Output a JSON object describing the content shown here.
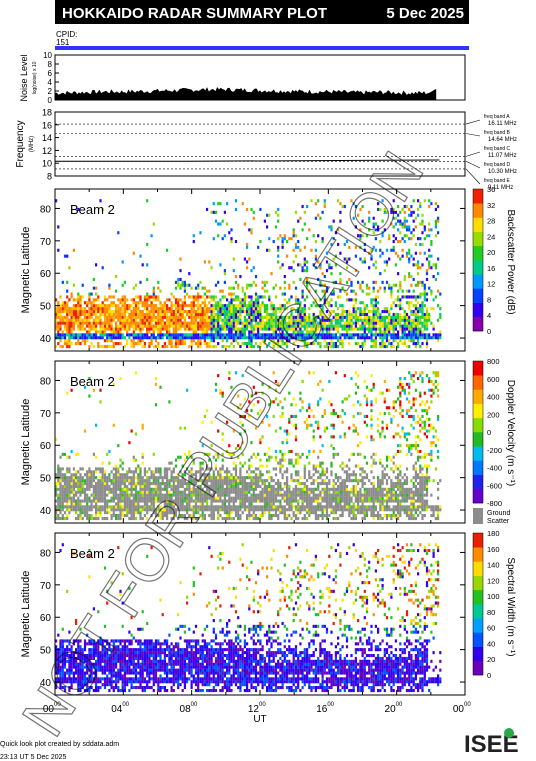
{
  "header": {
    "title": "HOKKAIDO RADAR SUMMARY PLOT",
    "date": "5 Dec 2025"
  },
  "cpid": {
    "label": "CPID:",
    "value": "151"
  },
  "colors": {
    "header_bg": "#000000",
    "cpid_bar": "#3333ff",
    "ground_scatter": "#8c8c8c",
    "watermark": "#000000"
  },
  "watermark": "NOT FOR PUBLICATION",
  "footer": {
    "credit": "Quick look plot created by sddata.adm",
    "timestamp": "23:13 UT  5 Dec 2025",
    "logo": "ISEE"
  },
  "chart_data": [
    {
      "type": "area",
      "id": "noise",
      "ylabel": "Noise Level",
      "ylabel_sub": "log(noise) x 10",
      "ylim": [
        0,
        10
      ],
      "yticks": [
        "0",
        "2",
        "4",
        "6",
        "8",
        "10"
      ],
      "x": [
        0,
        1,
        2,
        3,
        4,
        5,
        6,
        7,
        8,
        9,
        10,
        11,
        12,
        13,
        14,
        15,
        16,
        17,
        18,
        19,
        20,
        21,
        22
      ],
      "values": [
        1.5,
        1.6,
        1.7,
        1.8,
        1.8,
        1.9,
        2.0,
        2.1,
        2.2,
        2.3,
        2.3,
        2.2,
        2.1,
        2.0,
        1.9,
        1.8,
        1.8,
        1.7,
        1.6,
        1.7,
        1.6,
        1.5,
        1.6
      ]
    },
    {
      "type": "line",
      "id": "frequency",
      "ylabel": "Frequency",
      "ylabel_sub": "(MHz)",
      "ylim": [
        8,
        18
      ],
      "yticks": [
        "8",
        "10",
        "12",
        "14",
        "16",
        "18"
      ],
      "freq_bands": [
        {
          "label": "freq band A",
          "value": "16.11 MHz",
          "mhz": 16.11
        },
        {
          "label": "freq band B",
          "value": "14.64 MHz",
          "mhz": 14.64
        },
        {
          "label": "freq band C",
          "value": "11.07 MHz",
          "mhz": 11.07
        },
        {
          "label": "freq band D",
          "value": "10.30 MHz",
          "mhz": 10.3
        },
        {
          "label": "freq band E",
          "value": "9.11 MHz",
          "mhz": 9.11
        }
      ],
      "series": [
        {
          "x": [
            0,
            7.7,
            22.5
          ],
          "values": [
            10.3,
            10.3,
            10.5
          ]
        }
      ]
    },
    {
      "type": "heatmap",
      "id": "power",
      "beam": "Beam  2",
      "ylabel": "Magnetic Latitude",
      "ylim": [
        36,
        86
      ],
      "yticks": [
        "40",
        "50",
        "60",
        "70",
        "80"
      ],
      "colorbar": {
        "label": "Backscatter Power (dB)",
        "ticks": [
          "0",
          "4",
          "8",
          "12",
          "16",
          "20",
          "24",
          "28",
          "32",
          "36"
        ]
      }
    },
    {
      "type": "heatmap",
      "id": "velocity",
      "beam": "Beam  2",
      "ylabel": "Magnetic Latitude",
      "ylim": [
        36,
        86
      ],
      "yticks": [
        "40",
        "50",
        "60",
        "70",
        "80"
      ],
      "colorbar": {
        "label": "Doppler Velocity (m s⁻¹)",
        "ticks": [
          "800",
          "600",
          "400",
          "200",
          "0",
          "-200",
          "-400",
          "-600",
          "-800"
        ],
        "gs_label_1": "Ground",
        "gs_label_2": "Scatter"
      }
    },
    {
      "type": "heatmap",
      "id": "width",
      "beam": "Beam  2",
      "ylabel": "Magnetic Latitude",
      "ylim": [
        36,
        86
      ],
      "yticks": [
        "40",
        "50",
        "60",
        "70",
        "80"
      ],
      "colorbar": {
        "label": "Spectral Width (m s⁻¹)",
        "ticks": [
          "0",
          "20",
          "40",
          "60",
          "80",
          "100",
          "120",
          "140",
          "160",
          "180"
        ]
      }
    }
  ],
  "xaxis": {
    "label": "UT",
    "xlim": [
      0,
      24
    ],
    "ticks": [
      {
        "h": "00",
        "m": "00",
        "value": 0
      },
      {
        "h": "04",
        "m": "00",
        "value": 4
      },
      {
        "h": "08",
        "m": "00",
        "value": 8
      },
      {
        "h": "12",
        "m": "00",
        "value": 12
      },
      {
        "h": "16",
        "m": "00",
        "value": 16
      },
      {
        "h": "20",
        "m": "00",
        "value": 20
      },
      {
        "h": "00",
        "m": "00",
        "value": 24
      }
    ]
  }
}
